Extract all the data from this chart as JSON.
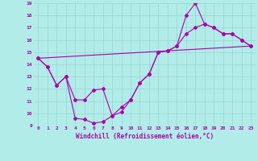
{
  "xlabel": "Windchill (Refroidissement éolien,°C)",
  "background_color": "#b2ece8",
  "grid_color": "#9ed8d4",
  "line_color": "#aa00aa",
  "xlim": [
    -0.5,
    23.5
  ],
  "ylim": [
    9,
    19
  ],
  "xticks": [
    0,
    1,
    2,
    3,
    4,
    5,
    6,
    7,
    8,
    9,
    10,
    11,
    12,
    13,
    14,
    15,
    16,
    17,
    18,
    19,
    20,
    21,
    22,
    23
  ],
  "yticks": [
    9,
    10,
    11,
    12,
    13,
    14,
    15,
    16,
    17,
    18,
    19
  ],
  "series1_x": [
    0,
    1,
    2,
    3,
    4,
    5,
    6,
    7,
    8,
    9,
    10,
    11,
    12,
    13,
    14,
    15,
    16,
    17,
    18,
    19,
    20,
    21,
    22,
    23
  ],
  "series1_y": [
    14.5,
    13.8,
    12.3,
    13.0,
    9.6,
    9.5,
    9.2,
    9.3,
    9.8,
    10.5,
    11.1,
    12.5,
    13.2,
    15.0,
    15.1,
    15.5,
    18.0,
    19.0,
    17.3,
    17.0,
    16.5,
    16.5,
    16.0,
    15.5
  ],
  "series2_x": [
    0,
    1,
    2,
    3,
    4,
    5,
    6,
    7,
    8,
    9,
    10,
    11,
    12,
    13,
    14,
    15,
    16,
    17,
    18,
    19,
    20,
    21,
    22,
    23
  ],
  "series2_y": [
    14.5,
    13.8,
    12.3,
    13.0,
    11.1,
    11.1,
    11.9,
    12.0,
    9.8,
    10.1,
    11.1,
    12.5,
    13.2,
    15.0,
    15.1,
    15.5,
    16.5,
    17.0,
    17.3,
    17.0,
    16.5,
    16.5,
    16.0,
    15.5
  ],
  "series3_x": [
    0,
    23
  ],
  "series3_y": [
    14.5,
    15.5
  ]
}
